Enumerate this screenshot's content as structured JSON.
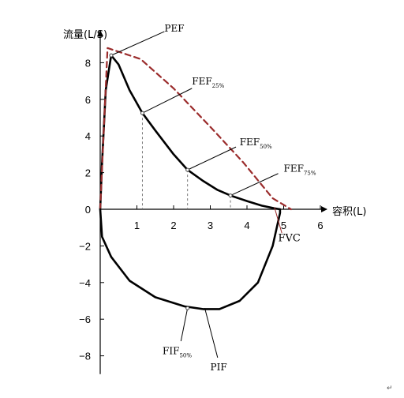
{
  "chart_data": {
    "type": "line",
    "ylabel": "流量(L/S)",
    "xlabel": "容积(L)",
    "xlim": [
      0,
      6
    ],
    "ylim": [
      -9,
      10
    ],
    "x_ticks": [
      "1",
      "2",
      "3",
      "4",
      "5",
      "6"
    ],
    "y_ticks": [
      "8",
      "6",
      "4",
      "2",
      "0",
      "−2",
      "−4",
      "−6",
      "−8"
    ],
    "grid": false,
    "colors": {
      "normal": "#000000",
      "reference": "#9b2c2c",
      "guide": "#777777"
    },
    "series": [
      {
        "style": "solid",
        "points": [
          [
            0,
            0
          ],
          [
            0.05,
            2.5
          ],
          [
            0.15,
            6.5
          ],
          [
            0.3,
            8.4
          ],
          [
            0.5,
            7.9
          ],
          [
            0.8,
            6.5
          ],
          [
            1.15,
            5.25
          ],
          [
            1.5,
            4.3
          ],
          [
            2.0,
            3.0
          ],
          [
            2.38,
            2.15
          ],
          [
            2.8,
            1.55
          ],
          [
            3.2,
            1.05
          ],
          [
            3.55,
            0.75
          ],
          [
            4.0,
            0.45
          ],
          [
            4.4,
            0.2
          ],
          [
            4.75,
            0.05
          ],
          [
            4.9,
            0
          ]
        ]
      },
      {
        "style": "dashed",
        "points": [
          [
            0,
            0
          ],
          [
            0.1,
            4.5
          ],
          [
            0.2,
            8.8
          ],
          [
            0.5,
            8.6
          ],
          [
            1.1,
            8.2
          ],
          [
            2.0,
            6.6
          ],
          [
            3.0,
            4.5
          ],
          [
            3.9,
            2.55
          ],
          [
            4.7,
            0.6
          ],
          [
            5.2,
            0
          ]
        ]
      },
      {
        "style": "solid",
        "points": [
          [
            0,
            0
          ],
          [
            0.05,
            -1.5
          ],
          [
            0.3,
            -2.6
          ],
          [
            0.8,
            -3.9
          ],
          [
            1.5,
            -4.8
          ],
          [
            2.3,
            -5.3
          ],
          [
            2.8,
            -5.45
          ],
          [
            3.25,
            -5.45
          ],
          [
            3.8,
            -5.0
          ],
          [
            4.3,
            -4.0
          ],
          [
            4.7,
            -2.0
          ],
          [
            4.9,
            -0.2
          ],
          [
            4.9,
            0
          ]
        ]
      }
    ],
    "annotations": [
      {
        "main": "PEF",
        "sub": "",
        "point": [
          0.3,
          8.4
        ],
        "line_to": [
          1.75,
          9.7
        ],
        "text_at": [
          1.75,
          9.7
        ]
      },
      {
        "main": "FEF",
        "sub": "25%",
        "point": [
          1.15,
          5.25
        ],
        "line_to": [
          2.5,
          6.6
        ],
        "text_at": [
          2.5,
          6.8
        ]
      },
      {
        "main": "FEF",
        "sub": "50%",
        "point": [
          2.38,
          2.15
        ],
        "line_to": [
          3.7,
          3.4
        ],
        "text_at": [
          3.8,
          3.5
        ]
      },
      {
        "main": "FEF",
        "sub": "75%",
        "point": [
          3.55,
          0.75
        ],
        "line_to": [
          4.85,
          1.95
        ],
        "text_at": [
          5.0,
          2.05
        ]
      },
      {
        "main": "FIF",
        "sub": "50%",
        "point": [
          2.38,
          -5.4
        ],
        "line_to": [
          2.2,
          -7.2
        ],
        "text_at": [
          1.7,
          -7.9
        ]
      },
      {
        "main": "PIF",
        "sub": "",
        "point": [
          2.85,
          -5.4
        ],
        "line_to": [
          3.2,
          -8.1
        ],
        "text_at": [
          3.0,
          -8.8
        ]
      },
      {
        "main": "FVC",
        "sub": "",
        "point": [
          4.75,
          0.1
        ],
        "line_to": [
          4.95,
          -1.3
        ],
        "text_at": [
          4.85,
          -1.75
        ]
      }
    ],
    "guides": [
      {
        "x": 1.15,
        "y_top": 5.25
      },
      {
        "x": 2.38,
        "y_top": 2.15
      },
      {
        "x": 3.55,
        "y_top": 0.75
      }
    ]
  },
  "corner_mark": "↵"
}
